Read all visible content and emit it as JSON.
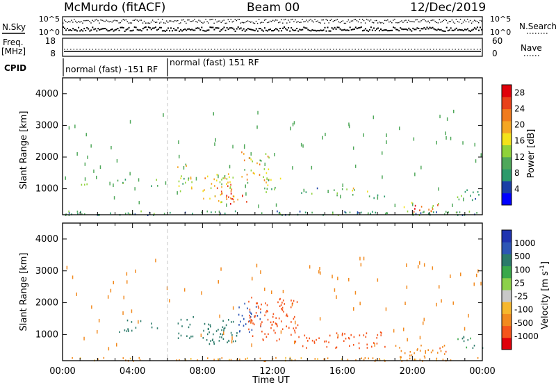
{
  "header": {
    "station": "McMurdo (fitACF)",
    "beam": "Beam 00",
    "date": "12/Dec/2019"
  },
  "noise_panel": {
    "left_label": "N.Sky",
    "right_label": "N.Search",
    "left_ticks": [
      "10^5",
      "10^0"
    ],
    "right_ticks": [
      "10^5",
      "10^0"
    ]
  },
  "freq_panel": {
    "left_label_line1": "Freq.",
    "left_label_line2": "[MHz]",
    "left_ticks": [
      "18",
      "8"
    ],
    "right_ticks": [
      "60",
      "0"
    ],
    "right_label": "Nave"
  },
  "cpid": {
    "label": "CPID",
    "segments": [
      {
        "text": "normal (fast) -151 RF",
        "start": "00:00",
        "end": "06:00"
      },
      {
        "text": "normal (fast) 151 RF",
        "start": "06:00",
        "end": "24:00"
      }
    ]
  },
  "time_axis": {
    "label": "Time UT",
    "ticks": [
      "00:00",
      "04:00",
      "08:00",
      "12:00",
      "16:00",
      "20:00",
      "00:00"
    ]
  },
  "colors": {
    "power_scale": [
      "#0000ff",
      "#1a3fa6",
      "#2c9a6b",
      "#4fa85a",
      "#8fd23a",
      "#f3e21a",
      "#f5a623",
      "#f07b1d",
      "#e8411a",
      "#e0000a"
    ],
    "velocity_scale": [
      "#e0000a",
      "#f5541b",
      "#f28a1f",
      "#f6b72d",
      "#c8c8c8",
      "#8cd04a",
      "#3aa84a",
      "#2b7a6a",
      "#2d56b5",
      "#1f33b0"
    ]
  },
  "chart_data": [
    {
      "type": "heatmap",
      "title": "",
      "xlabel": "Time UT",
      "ylabel": "Slant Range [km]",
      "xlim": [
        0,
        24
      ],
      "ylim": [
        180,
        4500
      ],
      "yticks": [
        1000,
        2000,
        3000,
        4000
      ],
      "colorbar": {
        "label": "Power [dB]",
        "ticks": [
          "4",
          "8",
          "12",
          "16",
          "20",
          "24",
          "28"
        ],
        "range": [
          0,
          30
        ]
      },
      "echo_regions": [
        {
          "t_start": 0.0,
          "t_end": 24.0,
          "range_min": 190,
          "range_max": 320,
          "value": 9,
          "density": 0.85
        },
        {
          "t_start": 0.8,
          "t_end": 1.6,
          "range_min": 950,
          "range_max": 1250,
          "value": 10,
          "density": 0.3
        },
        {
          "t_start": 3.0,
          "t_end": 3.8,
          "range_min": 1100,
          "range_max": 1350,
          "value": 11,
          "density": 0.5
        },
        {
          "t_start": 5.0,
          "t_end": 5.6,
          "range_min": 1100,
          "range_max": 1400,
          "value": 10,
          "density": 0.4
        },
        {
          "t_start": 6.5,
          "t_end": 7.5,
          "range_min": 900,
          "range_max": 1800,
          "value": 14,
          "density": 0.55
        },
        {
          "t_start": 8.0,
          "t_end": 9.8,
          "range_min": 600,
          "range_max": 1500,
          "value": 19,
          "density": 0.85
        },
        {
          "t_start": 9.3,
          "t_end": 10.5,
          "range_min": 550,
          "range_max": 900,
          "value": 26,
          "density": 0.7
        },
        {
          "t_start": 10.2,
          "t_end": 11.8,
          "range_min": 1200,
          "range_max": 2200,
          "value": 17,
          "density": 0.55
        },
        {
          "t_start": 11.5,
          "t_end": 12.5,
          "range_min": 900,
          "range_max": 1500,
          "value": 13,
          "density": 0.5
        },
        {
          "t_start": 13.5,
          "t_end": 14.8,
          "range_min": 850,
          "range_max": 1100,
          "value": 9,
          "density": 0.5
        },
        {
          "t_start": 15.2,
          "t_end": 16.8,
          "range_min": 800,
          "range_max": 1050,
          "value": 14,
          "density": 0.6
        },
        {
          "t_start": 17.2,
          "t_end": 18.4,
          "range_min": 700,
          "range_max": 950,
          "value": 11,
          "density": 0.5
        },
        {
          "t_start": 19.5,
          "t_end": 21.5,
          "range_min": 300,
          "range_max": 600,
          "value": 20,
          "density": 0.7
        },
        {
          "t_start": 22.5,
          "t_end": 24.0,
          "range_min": 600,
          "range_max": 1000,
          "value": 9,
          "density": 0.5
        }
      ]
    },
    {
      "type": "heatmap",
      "title": "",
      "xlabel": "Time UT",
      "ylabel": "Slant Range [km]",
      "xlim": [
        0,
        24
      ],
      "ylim": [
        180,
        4500
      ],
      "yticks": [
        1000,
        2000,
        3000,
        4000
      ],
      "colorbar": {
        "label": "Velocity [m s^-1]",
        "ticks": [
          "1000",
          "500",
          "100",
          "25",
          "-25",
          "-100",
          "-500",
          "-1000"
        ]
      },
      "echo_regions": [
        {
          "t_start": 0.0,
          "t_end": 24.0,
          "range_min": 190,
          "range_max": 300,
          "value": -60,
          "density": 0.75
        },
        {
          "t_start": 3.0,
          "t_end": 4.5,
          "range_min": 1100,
          "range_max": 1500,
          "value": 150,
          "density": 0.5
        },
        {
          "t_start": 5.0,
          "t_end": 5.6,
          "range_min": 1150,
          "range_max": 1500,
          "value": 150,
          "density": 0.45
        },
        {
          "t_start": 6.5,
          "t_end": 7.5,
          "range_min": 900,
          "range_max": 1600,
          "value": 200,
          "density": 0.55
        },
        {
          "t_start": 8.0,
          "t_end": 10.0,
          "range_min": 700,
          "range_max": 1500,
          "value": 300,
          "density": 0.8
        },
        {
          "t_start": 10.0,
          "t_end": 11.3,
          "range_min": 1100,
          "range_max": 2000,
          "value": 700,
          "density": 0.6
        },
        {
          "t_start": 10.5,
          "t_end": 13.5,
          "range_min": 800,
          "range_max": 2200,
          "value": -300,
          "density": 0.6
        },
        {
          "t_start": 13.5,
          "t_end": 18.5,
          "range_min": 600,
          "range_max": 1100,
          "value": -200,
          "density": 0.55
        },
        {
          "t_start": 19.0,
          "t_end": 22.0,
          "range_min": 300,
          "range_max": 700,
          "value": -80,
          "density": 0.6
        },
        {
          "t_start": 22.5,
          "t_end": 24.0,
          "range_min": 600,
          "range_max": 1000,
          "value": 120,
          "density": 0.5
        }
      ]
    }
  ]
}
